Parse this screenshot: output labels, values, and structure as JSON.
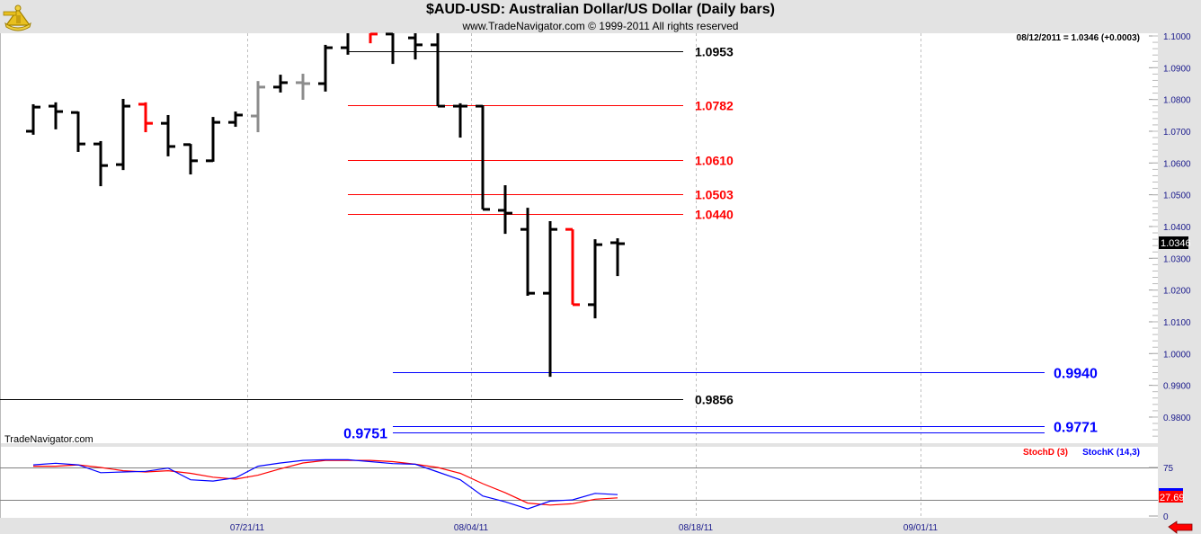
{
  "header": {
    "title": "$AUD-USD:  Australian Dollar/US Dollar  (Daily bars)",
    "subtitle": "www.TradeNavigator.com © 1999-2011 All rights reserved",
    "logo_icon": "sextant-logo-icon"
  },
  "readout": "08/12/2011 = 1.0346 (+0.0003)",
  "watermark": "TradeNavigator.com",
  "colors": {
    "up": "#000000",
    "red": "#ff0000",
    "gray": "#8c8c8c",
    "blue": "#0000ff",
    "axis_text": "#1a1a8c",
    "background": "#ffffff",
    "frame": "#e3e3e3"
  },
  "chart_data": [
    {
      "type": "ohlc",
      "title": "$AUD-USD:  Australian Dollar/US Dollar  (Daily bars)",
      "ylim": [
        0.973,
        1.1
      ],
      "y_ticks": [
        "1.1000",
        "1.0900",
        "1.0800",
        "1.0700",
        "1.0600",
        "1.0500",
        "1.0400",
        "1.0300",
        "1.0200",
        "1.0100",
        "1.0000",
        "0.9900",
        "0.9800"
      ],
      "x_ticks": [
        "07/21/11",
        "08/04/11",
        "08/18/11",
        "09/01/11"
      ],
      "last_price": "1.0346",
      "bars": [
        {
          "o": 1.07,
          "h": 1.0785,
          "l": 1.0689,
          "c": 1.0776,
          "color": "up"
        },
        {
          "o": 1.0779,
          "h": 1.0791,
          "l": 1.0706,
          "c": 1.0762,
          "color": "up"
        },
        {
          "o": 1.0759,
          "h": 1.0762,
          "l": 1.0635,
          "c": 1.066,
          "color": "up"
        },
        {
          "o": 1.066,
          "h": 1.0669,
          "l": 1.0527,
          "c": 1.0592,
          "color": "up"
        },
        {
          "o": 1.0595,
          "h": 1.0802,
          "l": 1.0578,
          "c": 1.0779,
          "color": "up"
        },
        {
          "o": 1.0785,
          "h": 1.0791,
          "l": 1.0697,
          "c": 1.0725,
          "color": "red"
        },
        {
          "o": 1.0725,
          "h": 1.0751,
          "l": 1.0621,
          "c": 1.0652,
          "color": "up"
        },
        {
          "o": 1.0658,
          "h": 1.066,
          "l": 1.0564,
          "c": 1.0607,
          "color": "up"
        },
        {
          "o": 1.0607,
          "h": 1.0745,
          "l": 1.0604,
          "c": 1.0728,
          "color": "up"
        },
        {
          "o": 1.0728,
          "h": 1.0762,
          "l": 1.0714,
          "c": 1.0751,
          "color": "up"
        },
        {
          "o": 1.0748,
          "h": 1.0858,
          "l": 1.0697,
          "c": 1.0839,
          "color": "gray"
        },
        {
          "o": 1.0839,
          "h": 1.0878,
          "l": 1.0822,
          "c": 1.0853,
          "color": "up"
        },
        {
          "o": 1.0853,
          "h": 1.0881,
          "l": 1.0799,
          "c": 1.085,
          "color": "gray"
        },
        {
          "o": 1.085,
          "h": 1.0972,
          "l": 1.0825,
          "c": 1.0963,
          "color": "up"
        },
        {
          "o": 1.0963,
          "h": 1.104,
          "l": 1.0941,
          "c": 1.101,
          "color": "up"
        },
        {
          "o": 1.103,
          "h": 1.104,
          "l": 1.0977,
          "c": 1.1006,
          "color": "red"
        },
        {
          "o": 1.1006,
          "h": 1.106,
          "l": 1.0912,
          "c": 1.103,
          "color": "up"
        },
        {
          "o": 1.0994,
          "h": 1.104,
          "l": 1.0926,
          "c": 1.0972,
          "color": "up"
        },
        {
          "o": 1.0972,
          "h": 1.102,
          "l": 1.0779,
          "c": 1.0779,
          "color": "up"
        },
        {
          "o": 1.0779,
          "h": 1.0788,
          "l": 1.068,
          "c": 1.0779,
          "color": "up"
        },
        {
          "o": 1.0779,
          "h": 1.0782,
          "l": 1.0454,
          "c": 1.0454,
          "color": "up"
        },
        {
          "o": 1.0451,
          "h": 1.053,
          "l": 1.0377,
          "c": 1.0442,
          "color": "up"
        },
        {
          "o": 1.0391,
          "h": 1.0459,
          "l": 1.0182,
          "c": 1.019,
          "color": "up"
        },
        {
          "o": 1.019,
          "h": 1.0417,
          "l": 0.9927,
          "c": 1.0391,
          "color": "up"
        },
        {
          "o": 1.0391,
          "h": 1.0391,
          "l": 1.0154,
          "c": 1.0154,
          "color": "red"
        },
        {
          "o": 1.0154,
          "h": 1.036,
          "l": 1.0111,
          "c": 1.0343,
          "color": "up"
        },
        {
          "o": 1.0349,
          "h": 1.0363,
          "l": 1.0244,
          "c": 1.0346,
          "color": "up"
        }
      ],
      "levels": [
        {
          "value": 1.0953,
          "label": "1.0953",
          "color": "up",
          "span": "upper"
        },
        {
          "value": 1.0782,
          "label": "1.0782",
          "color": "red",
          "span": "upper"
        },
        {
          "value": 1.061,
          "label": "1.0610",
          "color": "red",
          "span": "upper"
        },
        {
          "value": 1.0503,
          "label": "1.0503",
          "color": "red",
          "span": "upper"
        },
        {
          "value": 1.044,
          "label": "1.0440",
          "color": "red",
          "span": "upper"
        },
        {
          "value": 0.994,
          "label": "0.9940",
          "color": "blue",
          "span": "lower"
        },
        {
          "value": 0.9856,
          "label": "0.9856",
          "color": "up",
          "span": "full"
        },
        {
          "value": 0.9771,
          "label": "0.9771",
          "color": "blue",
          "span": "lower"
        },
        {
          "value": 0.9751,
          "label": "0.9751",
          "color": "blue",
          "span": "lower-left-label"
        }
      ]
    },
    {
      "type": "line",
      "ylim": [
        0,
        100
      ],
      "y_ticks": [
        "75",
        "0"
      ],
      "reference_lines": [
        75,
        25
      ],
      "last_value": "27.69",
      "series": [
        {
          "name": "StochD (3)",
          "color": "red",
          "values": [
            77,
            77,
            79,
            75,
            70,
            68,
            70,
            66,
            60,
            57,
            63,
            73,
            82,
            86,
            86,
            86,
            84,
            80,
            75,
            66,
            50,
            36,
            20,
            17,
            19,
            26,
            28
          ]
        },
        {
          "name": "StochK (14,3)",
          "color": "blue",
          "values": [
            79,
            81.5,
            79,
            67,
            68,
            69,
            74,
            56,
            54,
            59,
            77,
            82,
            86,
            87,
            87,
            84,
            81,
            80,
            68,
            56,
            31,
            22,
            11,
            23,
            25,
            35,
            33
          ]
        }
      ]
    }
  ],
  "nav": {
    "scroll_icon": "red-left-arrow-icon"
  }
}
